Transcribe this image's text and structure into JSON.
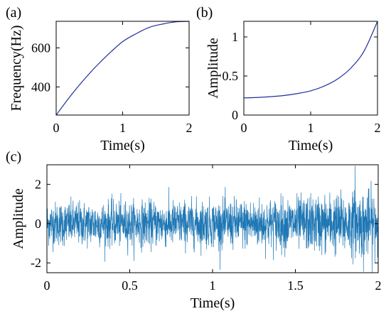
{
  "chart_data": [
    {
      "panel": "(a)",
      "type": "line",
      "title": "",
      "xlabel": "Time(s)",
      "ylabel": "Frequency(Hz)",
      "xlim": [
        0,
        2
      ],
      "ylim": [
        256,
        736
      ],
      "xticks": [
        0,
        1,
        2
      ],
      "yticks": [
        400,
        600
      ],
      "grid": false,
      "line_color": "#1f2f9c",
      "series": [
        {
          "x": [
            0,
            0.2,
            0.4,
            0.6,
            0.8,
            1.0,
            1.2,
            1.4,
            1.6,
            1.8,
            2.0
          ],
          "values": [
            256,
            347,
            430,
            505,
            572,
            632,
            672,
            705,
            722,
            733,
            736
          ]
        }
      ]
    },
    {
      "panel": "(b)",
      "type": "line",
      "title": "",
      "xlabel": "Time(s)",
      "ylabel": "Amplitude",
      "xlim": [
        0,
        2
      ],
      "ylim": [
        0,
        1.2
      ],
      "xticks": [
        0,
        1,
        2
      ],
      "yticks": [
        0,
        0.5,
        1
      ],
      "grid": false,
      "line_color": "#1f2f9c",
      "series": [
        {
          "x": [
            0,
            0.2,
            0.4,
            0.6,
            0.8,
            1.0,
            1.2,
            1.4,
            1.6,
            1.8,
            2.0
          ],
          "values": [
            0.22,
            0.225,
            0.235,
            0.25,
            0.275,
            0.31,
            0.37,
            0.46,
            0.6,
            0.82,
            1.2
          ]
        }
      ]
    },
    {
      "panel": "(c)",
      "type": "line",
      "title": "",
      "xlabel": "Time(s)",
      "ylabel": "Amplitude",
      "xlim": [
        0,
        2
      ],
      "ylim": [
        -2.5,
        3
      ],
      "xticks": [
        0,
        0.5,
        1,
        1.5,
        2
      ],
      "yticks": [
        -2,
        0,
        2
      ],
      "grid": false,
      "line_color": "#1f77b4",
      "noise": {
        "samples": 2000,
        "envelope_x": [
          0,
          0.5,
          1.0,
          1.5,
          2.0
        ],
        "envelope_sd": [
          0.55,
          0.56,
          0.58,
          0.66,
          0.85
        ],
        "peak_values": [
          2.95,
          -2.45
        ]
      }
    }
  ]
}
